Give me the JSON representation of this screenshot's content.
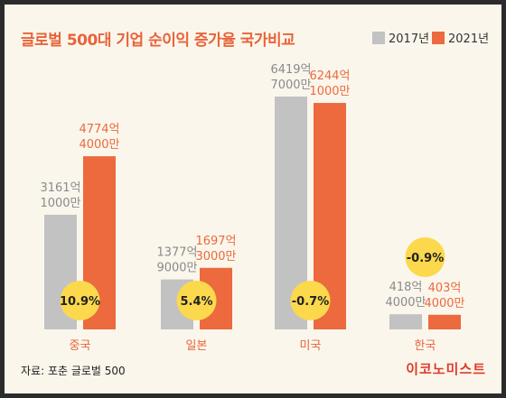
{
  "title": "글로벌 500대 기업 순이익 증가율 국가비교",
  "legend": {
    "a": "2017년",
    "b": "2021년"
  },
  "source": "자료: 포춘 글로벌 500",
  "logo": "이코노미스트",
  "colors": {
    "gray": "#c2c2c2",
    "orange": "#ec6a3d",
    "badge": "#fcd94c",
    "countryText": "#e8643a",
    "grayText": "#8a8a8a"
  },
  "chart_data": {
    "type": "bar",
    "title": "글로벌 500대 기업 순이익 증가율 국가비교",
    "unit": "억",
    "categories": [
      "중국",
      "일본",
      "미국",
      "한국"
    ],
    "series": [
      {
        "name": "2017년",
        "values": [
          31611000,
          13779000,
          64197000,
          4184000
        ],
        "labels": [
          [
            "3161억",
            "1000만"
          ],
          [
            "1377억",
            "9000만"
          ],
          [
            "6419억",
            "7000만"
          ],
          [
            "418억",
            "4000만"
          ]
        ]
      },
      {
        "name": "2021년",
        "values": [
          47744000,
          16973000,
          62441000,
          4034000
        ],
        "labels": [
          [
            "4774억",
            "4000만"
          ],
          [
            "1697억",
            "3000만"
          ],
          [
            "6244억",
            "1000만"
          ],
          [
            "403억",
            "4000만"
          ]
        ]
      }
    ],
    "growth": [
      "10.9%",
      "5.4%",
      "-0.7%",
      "-0.9%"
    ]
  }
}
